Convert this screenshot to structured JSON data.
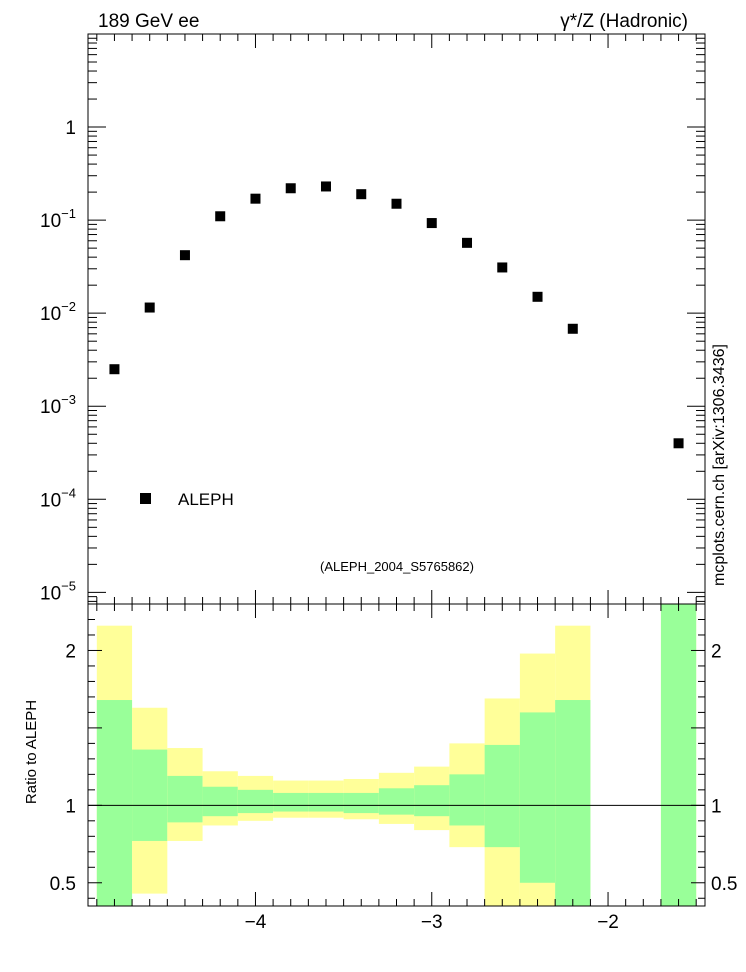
{
  "header": {
    "left": "189 GeV ee",
    "right": "γ*/Z (Hadronic)"
  },
  "watermark": "mcplots.cern.ch [arXiv:1306.3436]",
  "analysis_id": "(ALEPH_2004_S5765862)",
  "colors": {
    "data": "#000000",
    "band_inner": "#99ff99",
    "band_outer": "#ffff99",
    "watermark": "#7f7f7f",
    "frame": "#000000"
  },
  "chart_data": [
    {
      "type": "scatter",
      "panel": "main",
      "xlim": [
        -4.95,
        -1.45
      ],
      "ylim": [
        7.5e-06,
        10
      ],
      "yscale": "log",
      "y_tick_labels": [
        "1",
        "10",
        "10",
        "10",
        "10",
        "10"
      ],
      "y_tick_exponents": [
        "",
        "−1",
        "−2",
        "−3",
        "−4",
        "−5"
      ],
      "legend": {
        "position": "bottom-left",
        "label": "ALEPH"
      },
      "series": [
        {
          "name": "ALEPH",
          "x": [
            -4.8,
            -4.6,
            -4.4,
            -4.2,
            -4.0,
            -3.8,
            -3.6,
            -3.4,
            -3.2,
            -3.0,
            -2.8,
            -2.6,
            -2.4,
            -2.2,
            -1.6
          ],
          "y": [
            0.0025,
            0.0115,
            0.042,
            0.11,
            0.17,
            0.22,
            0.23,
            0.19,
            0.15,
            0.093,
            0.057,
            0.031,
            0.015,
            0.0068,
            0.0004
          ]
        }
      ]
    },
    {
      "type": "area",
      "panel": "ratio",
      "ylabel": "Ratio to ALEPH",
      "xlim": [
        -4.95,
        -1.45
      ],
      "ylim": [
        0.35,
        2.3
      ],
      "x_tick_labels": [
        "−4",
        "−3",
        "−2"
      ],
      "x_ticks": [
        -4,
        -3,
        -2
      ],
      "y_tick_labels": [
        "0.5",
        "1",
        "2"
      ],
      "y_ticks": [
        0.5,
        1,
        2
      ],
      "reference_line": 1,
      "bins": [
        {
          "x0": -4.9,
          "x1": -4.7,
          "in_lo": 0.35,
          "in_hi": 1.68,
          "out_lo": 0.35,
          "out_hi": 2.16
        },
        {
          "x0": -4.7,
          "x1": -4.5,
          "in_lo": 0.77,
          "in_hi": 1.36,
          "out_lo": 0.43,
          "out_hi": 1.63
        },
        {
          "x0": -4.5,
          "x1": -4.3,
          "in_lo": 0.89,
          "in_hi": 1.19,
          "out_lo": 0.77,
          "out_hi": 1.37
        },
        {
          "x0": -4.3,
          "x1": -4.1,
          "in_lo": 0.93,
          "in_hi": 1.12,
          "out_lo": 0.87,
          "out_hi": 1.22
        },
        {
          "x0": -4.1,
          "x1": -3.9,
          "in_lo": 0.95,
          "in_hi": 1.1,
          "out_lo": 0.9,
          "out_hi": 1.19
        },
        {
          "x0": -3.9,
          "x1": -3.7,
          "in_lo": 0.96,
          "in_hi": 1.08,
          "out_lo": 0.92,
          "out_hi": 1.16
        },
        {
          "x0": -3.7,
          "x1": -3.5,
          "in_lo": 0.96,
          "in_hi": 1.08,
          "out_lo": 0.92,
          "out_hi": 1.16
        },
        {
          "x0": -3.5,
          "x1": -3.3,
          "in_lo": 0.95,
          "in_hi": 1.08,
          "out_lo": 0.91,
          "out_hi": 1.17
        },
        {
          "x0": -3.3,
          "x1": -3.1,
          "in_lo": 0.94,
          "in_hi": 1.11,
          "out_lo": 0.88,
          "out_hi": 1.21
        },
        {
          "x0": -3.1,
          "x1": -2.9,
          "in_lo": 0.93,
          "in_hi": 1.13,
          "out_lo": 0.84,
          "out_hi": 1.25
        },
        {
          "x0": -2.9,
          "x1": -2.7,
          "in_lo": 0.87,
          "in_hi": 1.2,
          "out_lo": 0.73,
          "out_hi": 1.4
        },
        {
          "x0": -2.7,
          "x1": -2.5,
          "in_lo": 0.73,
          "in_hi": 1.39,
          "out_lo": 0.35,
          "out_hi": 1.69
        },
        {
          "x0": -2.5,
          "x1": -2.3,
          "in_lo": 0.5,
          "in_hi": 1.6,
          "out_lo": 0.35,
          "out_hi": 1.98
        },
        {
          "x0": -2.3,
          "x1": -2.1,
          "in_lo": 0.35,
          "in_hi": 1.68,
          "out_lo": 0.35,
          "out_hi": 2.16
        },
        {
          "x0": -1.7,
          "x1": -1.5,
          "in_lo": 0.35,
          "in_hi": 2.3,
          "out_lo": 0.35,
          "out_hi": 2.3
        }
      ]
    }
  ]
}
